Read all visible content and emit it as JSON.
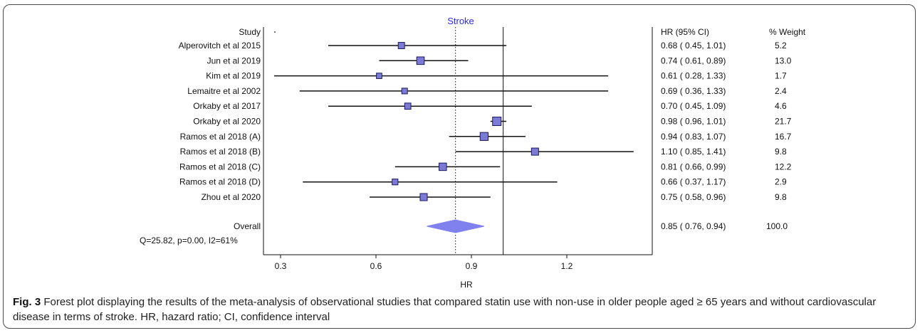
{
  "chart_data": {
    "type": "forest",
    "title": "Stroke",
    "xlabel": "HR",
    "xlim": [
      0.2,
      1.5
    ],
    "xticks": [
      0.3,
      0.6,
      0.9,
      1.2
    ],
    "reference_line": 1.0,
    "overall_line": 0.85,
    "columns": {
      "study": "Study",
      "hr": "HR (95% CI)",
      "weight": "% Weight"
    },
    "studies": [
      {
        "name": "Alperovitch et al 2015",
        "hr": 0.68,
        "lo": 0.45,
        "hi": 1.01,
        "weight": 5.2,
        "hr_text": "0.68  (  0.45,  1.01)",
        "weight_text": "5.2"
      },
      {
        "name": "Jun et al 2019",
        "hr": 0.74,
        "lo": 0.61,
        "hi": 0.89,
        "weight": 13.0,
        "hr_text": "0.74  (  0.61,  0.89)",
        "weight_text": "13.0"
      },
      {
        "name": "Kim et al 2019",
        "hr": 0.61,
        "lo": 0.28,
        "hi": 1.33,
        "weight": 1.7,
        "hr_text": "0.61  (  0.28,  1.33)",
        "weight_text": "1.7"
      },
      {
        "name": "Lemaitre et al 2002",
        "hr": 0.69,
        "lo": 0.36,
        "hi": 1.33,
        "weight": 2.4,
        "hr_text": "0.69  (  0.36,  1.33)",
        "weight_text": "2.4"
      },
      {
        "name": "Orkaby et al 2017",
        "hr": 0.7,
        "lo": 0.45,
        "hi": 1.09,
        "weight": 4.6,
        "hr_text": "0.70  (  0.45,  1.09)",
        "weight_text": "4.6"
      },
      {
        "name": "Orkaby et al 2020",
        "hr": 0.98,
        "lo": 0.96,
        "hi": 1.01,
        "weight": 21.7,
        "hr_text": "0.98  (  0.96,  1.01)",
        "weight_text": "21.7"
      },
      {
        "name": "Ramos et al 2018 (A)",
        "hr": 0.94,
        "lo": 0.83,
        "hi": 1.07,
        "weight": 16.7,
        "hr_text": "0.94  (  0.83,  1.07)",
        "weight_text": "16.7"
      },
      {
        "name": "Ramos et al 2018 (B)",
        "hr": 1.1,
        "lo": 0.85,
        "hi": 1.41,
        "weight": 9.8,
        "hr_text": "1.10  (  0.85,  1.41)",
        "weight_text": "9.8"
      },
      {
        "name": "Ramos et al 2018 (C)",
        "hr": 0.81,
        "lo": 0.66,
        "hi": 0.99,
        "weight": 12.2,
        "hr_text": "0.81  (  0.66,  0.99)",
        "weight_text": "12.2"
      },
      {
        "name": "Ramos et al 2018 (D)",
        "hr": 0.66,
        "lo": 0.37,
        "hi": 1.17,
        "weight": 2.9,
        "hr_text": "0.66  (  0.37,  1.17)",
        "weight_text": "2.9"
      },
      {
        "name": "Zhou et al 2020",
        "hr": 0.75,
        "lo": 0.58,
        "hi": 0.96,
        "weight": 9.8,
        "hr_text": "0.75  (  0.58,  0.96)",
        "weight_text": "9.8"
      }
    ],
    "overall": {
      "name": "Overall",
      "hr": 0.85,
      "lo": 0.76,
      "hi": 0.94,
      "weight": 100.0,
      "hr_text": "0.85  (  0.76,  0.94)",
      "weight_text": "100.0"
    },
    "heterogeneity": "Q=25.82, p=0.00, I2=61%",
    "colors": {
      "box": "#7b7bd6",
      "box_stroke": "#1a1a5e",
      "diamond": "#8080ee",
      "title": "#2a2aff"
    }
  },
  "caption": {
    "fig_label": "Fig. 3",
    "text": " Forest plot displaying the results of the meta-analysis of observational studies that compared statin use with non-use in older people aged ≥ 65 years and without cardiovascular disease in terms of stroke. HR, hazard ratio; CI, confidence interval"
  }
}
